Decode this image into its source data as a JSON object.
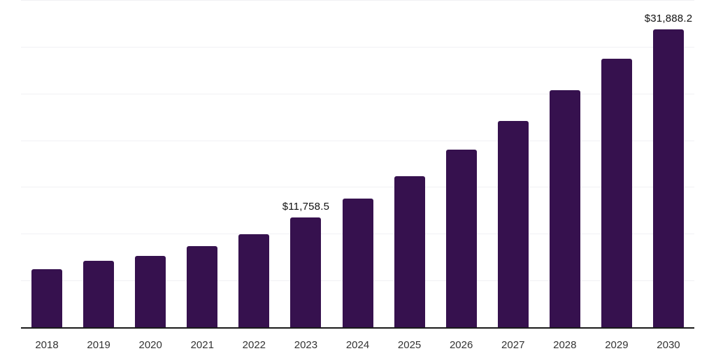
{
  "chart_data": {
    "type": "bar",
    "title": "",
    "xlabel": "",
    "ylabel": "",
    "categories": [
      "2018",
      "2019",
      "2020",
      "2021",
      "2022",
      "2023",
      "2024",
      "2025",
      "2026",
      "2027",
      "2028",
      "2029",
      "2030"
    ],
    "values": [
      6175,
      7100,
      7600,
      8675,
      9975,
      11758.5,
      13725,
      16175,
      18975,
      22050,
      25350,
      28725,
      31888.2
    ],
    "data_labels": [
      null,
      null,
      null,
      null,
      null,
      "$11,758.5",
      null,
      null,
      null,
      null,
      null,
      null,
      "$31,888.2"
    ],
    "ylim": [
      0,
      35000
    ],
    "grid_step": 5000,
    "grid": "horizontal",
    "legend": "none",
    "bar_color": "#36114E",
    "grid_color": "#F1F1F4",
    "axis_color": "#1A1A1A",
    "data_label_color": "#111111",
    "tick_label_color": "#333333",
    "background_color": "#FFFFFF"
  }
}
